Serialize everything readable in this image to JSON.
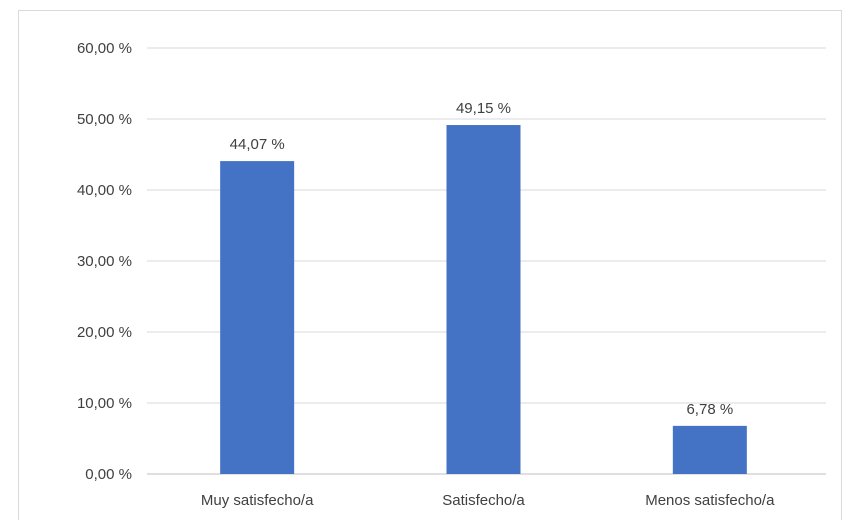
{
  "chart_data": {
    "type": "bar",
    "categories": [
      "Muy satisfecho/a",
      "Satisfecho/a",
      "Menos satisfecho/a"
    ],
    "values": [
      44.07,
      49.15,
      6.78
    ],
    "value_labels": [
      "44,07 %",
      "49,15 %",
      "6,78 %"
    ],
    "ylim": [
      0,
      60
    ],
    "yticks": [
      0,
      10,
      20,
      30,
      40,
      50,
      60
    ],
    "ytick_labels": [
      "0,00 %",
      "10,00 %",
      "20,00 %",
      "30,00 %",
      "40,00 %",
      "50,00 %",
      "60,00 %"
    ],
    "grid": true,
    "colors": {
      "bar": "#4472c4",
      "grid": "#d9d9d9",
      "axis": "#bfbfbf",
      "text": "#404040"
    }
  }
}
